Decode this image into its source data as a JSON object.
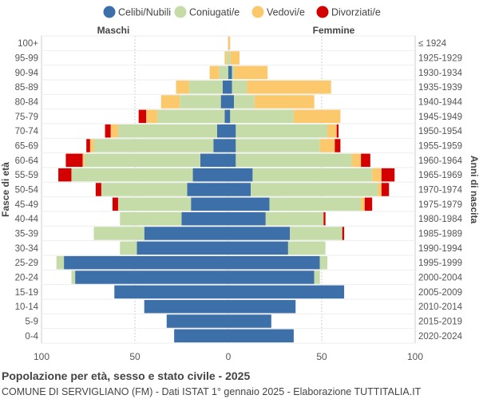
{
  "chart_data": {
    "type": "bar",
    "orientation": "horizontal-diverging",
    "title": "Popolazione per età, sesso e stato civile - 2025",
    "subtitle": "COMUNE DI SERVIGLIANO (FM) - Dati ISTAT 1° gennaio 2025 - Elaborazione TUTTITALIA.IT",
    "ylabel_left": "Fasce di età",
    "ylabel_right": "Anni di nascita",
    "side_labels": {
      "left": "Maschi",
      "right": "Femmine"
    },
    "xlim": [
      -100,
      100
    ],
    "xticks": [
      {
        "value": -100,
        "label": "100"
      },
      {
        "value": -50,
        "label": "50"
      },
      {
        "value": 0,
        "label": "0"
      },
      {
        "value": 50,
        "label": "50"
      },
      {
        "value": 100,
        "label": "100"
      }
    ],
    "grid": true,
    "legend_position": "top",
    "series_order": [
      "Celibi/Nubili",
      "Coniugati/e",
      "Vedovi/e",
      "Divorziati/e"
    ],
    "colors": {
      "Celibi/Nubili": "#3d6fa8",
      "Coniugati/e": "#c5dba8",
      "Vedovi/e": "#fbc96b",
      "Divorziati/e": "#d40000"
    },
    "categories": [
      "100+",
      "95-99",
      "90-94",
      "85-89",
      "80-84",
      "75-79",
      "70-74",
      "65-69",
      "60-64",
      "55-59",
      "50-54",
      "45-49",
      "40-44",
      "35-39",
      "30-34",
      "25-29",
      "20-24",
      "15-19",
      "10-14",
      "5-9",
      "0-4"
    ],
    "birth_years": [
      "≤ 1924",
      "1925-1929",
      "1930-1934",
      "1935-1939",
      "1940-1944",
      "1945-1949",
      "1950-1954",
      "1955-1959",
      "1960-1964",
      "1965-1969",
      "1970-1974",
      "1975-1979",
      "1980-1984",
      "1985-1989",
      "1990-1994",
      "1995-1999",
      "2000-2004",
      "2005-2009",
      "2010-2014",
      "2015-2019",
      "2020-2024"
    ],
    "males": {
      "Celibi/Nubili": [
        0,
        0,
        0,
        3,
        4,
        2,
        6,
        8,
        15,
        19,
        22,
        20,
        25,
        45,
        49,
        88,
        82,
        61,
        45,
        33,
        29
      ],
      "Coniugati/e": [
        0,
        1,
        5,
        18,
        22,
        36,
        53,
        64,
        62,
        65,
        46,
        39,
        33,
        27,
        9,
        4,
        2,
        0,
        0,
        0,
        0
      ],
      "Vedovi/e": [
        0,
        1,
        5,
        7,
        10,
        6,
        4,
        2,
        1,
        0,
        0,
        0,
        0,
        0,
        0,
        0,
        0,
        0,
        0,
        0,
        0
      ],
      "Divorziati/e": [
        0,
        0,
        0,
        0,
        0,
        4,
        3,
        2,
        9,
        7,
        3,
        3,
        0,
        0,
        0,
        0,
        0,
        0,
        0,
        0,
        0
      ]
    },
    "females": {
      "Celibi/Nubili": [
        0,
        0,
        2,
        2,
        3,
        1,
        4,
        4,
        4,
        13,
        12,
        22,
        20,
        33,
        32,
        49,
        46,
        62,
        36,
        23,
        35
      ],
      "Coniugati/e": [
        0,
        1,
        1,
        8,
        11,
        34,
        49,
        45,
        62,
        64,
        68,
        49,
        31,
        28,
        20,
        4,
        3,
        0,
        0,
        0,
        0
      ],
      "Vedovi/e": [
        1,
        5,
        18,
        45,
        32,
        25,
        5,
        8,
        5,
        5,
        2,
        2,
        0,
        0,
        0,
        0,
        0,
        0,
        0,
        0,
        0
      ],
      "Divorziati/e": [
        0,
        0,
        0,
        0,
        0,
        0,
        1,
        3,
        5,
        7,
        4,
        4,
        1,
        1,
        0,
        0,
        0,
        0,
        0,
        0,
        0
      ]
    }
  }
}
